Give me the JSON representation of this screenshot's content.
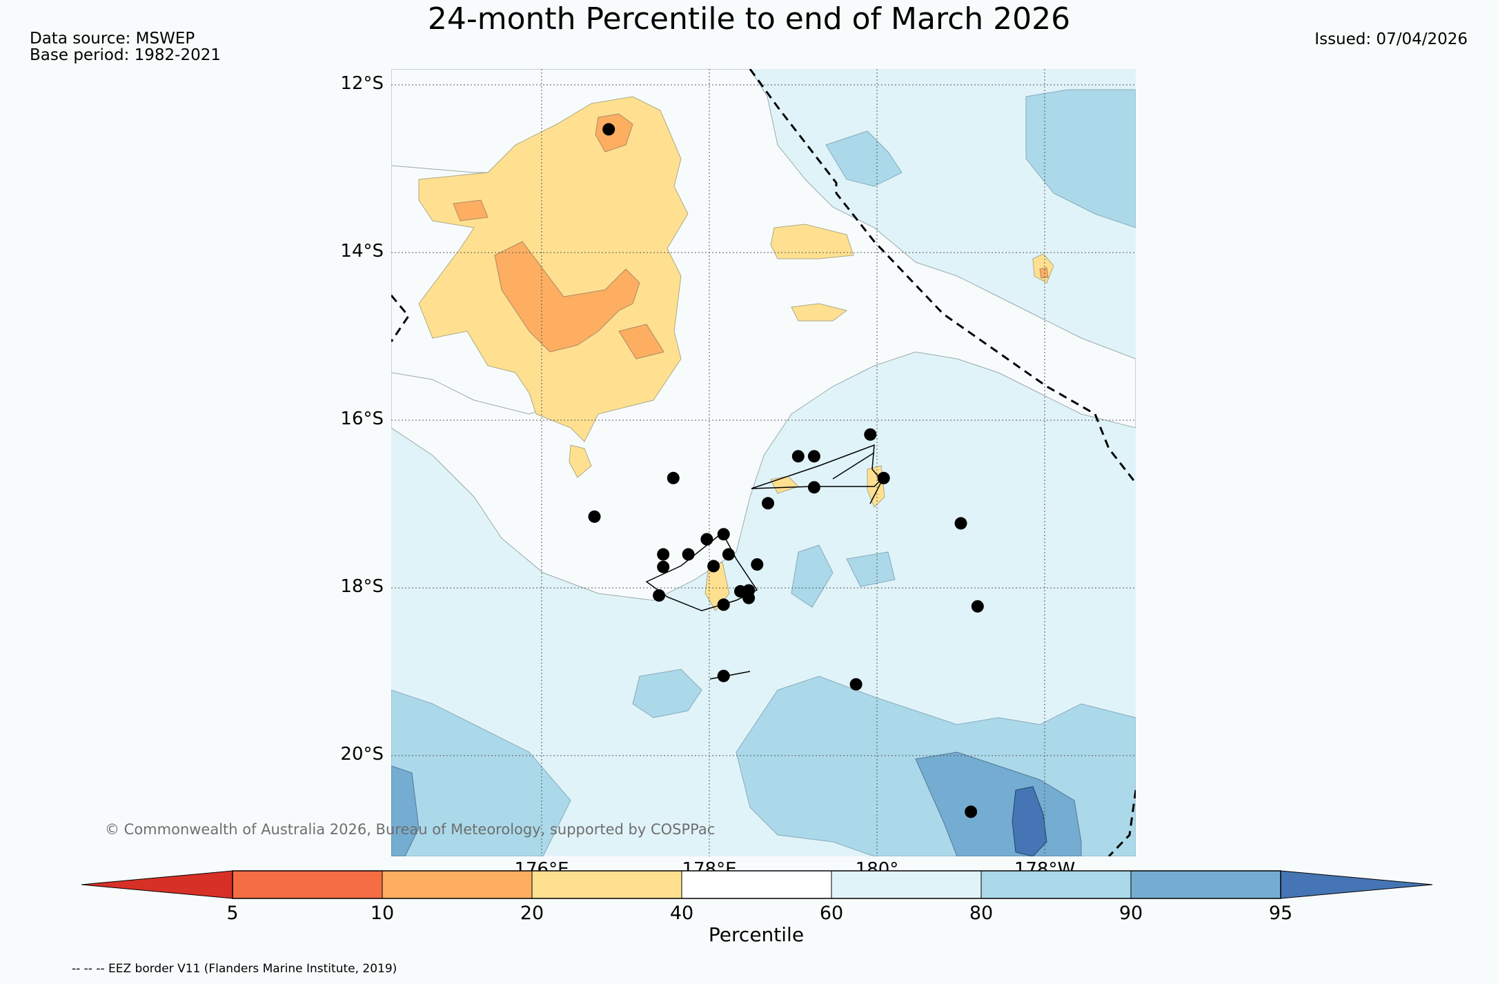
{
  "header": {
    "title": "24-month Percentile to end of March 2026",
    "data_source": "Data source: MSWEP",
    "base_period": "Base period: 1982-2021",
    "issued": "Issued: 07/04/2026"
  },
  "map": {
    "lat_labels": [
      "12°S",
      "14°S",
      "16°S",
      "18°S",
      "20°S"
    ],
    "lon_labels": [
      "176°E",
      "178°E",
      "180°",
      "178°W"
    ],
    "copyright": "© Commonwealth of Australia 2026, Bureau of Meteorology, supported by COSPPac",
    "stations": [
      {
        "lon": 176.8,
        "lat": -12.53
      },
      {
        "lon": 177.57,
        "lat": -16.69
      },
      {
        "lon": 176.63,
        "lat": -17.15
      },
      {
        "lon": 179.06,
        "lat": -16.43
      },
      {
        "lon": 179.25,
        "lat": -16.43
      },
      {
        "lon": 179.92,
        "lat": -16.17
      },
      {
        "lon": 180.08,
        "lat": -16.69
      },
      {
        "lon": 179.25,
        "lat": -16.8
      },
      {
        "lon": 178.7,
        "lat": -16.99
      },
      {
        "lon": 177.45,
        "lat": -17.6
      },
      {
        "lon": 177.45,
        "lat": -17.75
      },
      {
        "lon": 177.75,
        "lat": -17.6
      },
      {
        "lon": 177.97,
        "lat": -17.42
      },
      {
        "lon": 178.17,
        "lat": -17.36
      },
      {
        "lon": 178.23,
        "lat": -17.6
      },
      {
        "lon": 178.05,
        "lat": -17.74
      },
      {
        "lon": 178.57,
        "lat": -17.72
      },
      {
        "lon": 177.4,
        "lat": -18.09
      },
      {
        "lon": 178.17,
        "lat": -18.2
      },
      {
        "lon": 178.37,
        "lat": -18.04
      },
      {
        "lon": 178.47,
        "lat": -18.03
      },
      {
        "lon": 178.47,
        "lat": -18.12
      },
      {
        "lon": 178.17,
        "lat": -19.05
      },
      {
        "lon": 179.75,
        "lat": -19.15
      },
      {
        "lon": 181.0,
        "lat": -17.23
      },
      {
        "lon": 181.2,
        "lat": -18.22
      },
      {
        "lon": 181.12,
        "lat": -20.67
      }
    ]
  },
  "colorbar": {
    "label": "Percentile",
    "ticks": [
      "5",
      "10",
      "20",
      "40",
      "60",
      "80",
      "90",
      "95"
    ],
    "colors": {
      "below5": "#d73027",
      "p5_10": "#f46d43",
      "p10_20": "#fdae61",
      "p20_40": "#fee090",
      "p40_60": "#ffffff",
      "p60_80": "#e0f3f8",
      "p80_90": "#abd9e9",
      "p90_95": "#74add1",
      "above95": "#4575b4"
    }
  },
  "footer": {
    "eez_note": "-- -- -- EEZ border V11 (Flanders Marine Institute, 2019)"
  }
}
